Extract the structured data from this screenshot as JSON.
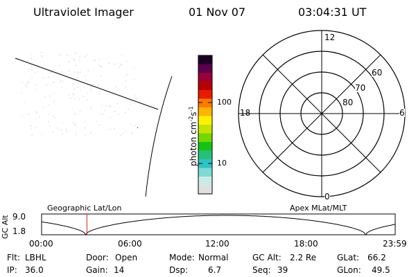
{
  "header": {
    "instrument": "Ultraviolet Imager",
    "date": "01 Nov 07",
    "time": "03:04:31 UT"
  },
  "colorbar": {
    "label": "photon cm",
    "label_exp1": "-2",
    "label_mid": "s",
    "label_exp2": "-1",
    "ticks": [
      "100",
      "10"
    ],
    "colors": [
      "#dfdfdf",
      "#c9ece6",
      "#7fd9d6",
      "#2fc4c4",
      "#27c07a",
      "#17c217",
      "#76d600",
      "#c2e400",
      "#fff000",
      "#ffb400",
      "#ff7a00",
      "#e81a00",
      "#b80000",
      "#98003a",
      "#5a004e",
      "#1c0026"
    ]
  },
  "polar": {
    "lat_labels": [
      "80",
      "70",
      "60"
    ],
    "mlt_labels": {
      "top": "12",
      "left": "18",
      "right": "6",
      "bottom": "0"
    }
  },
  "timeline": {
    "axis_label": "GC Alt",
    "y_labels": [
      "9.0",
      "1.8"
    ],
    "left_title": "Geographic Lat/Lon",
    "right_title": "Apex MLat/MLT",
    "x_labels": [
      "00:00",
      "06:00",
      "12:00",
      "18:00",
      "23:59"
    ],
    "marker_hour": 3.075,
    "marker_color": "#d02000"
  },
  "status": {
    "row1": [
      {
        "key": "Flt:",
        "value": "LBHL"
      },
      {
        "key": "Door:",
        "value": "Open"
      },
      {
        "key": "Mode:",
        "value": "Normal"
      },
      {
        "key": "GC Alt:",
        "value": "2.2 Re"
      },
      {
        "key": "GLat:",
        "value": "66.2"
      }
    ],
    "row2": [
      {
        "key": "IP:",
        "value": "36.0"
      },
      {
        "key": "Gain:",
        "value": "14"
      },
      {
        "key": "Dsp:",
        "value": "6.7"
      },
      {
        "key": "Seq:",
        "value": "39"
      },
      {
        "key": "GLon:",
        "value": "49.5"
      }
    ]
  }
}
